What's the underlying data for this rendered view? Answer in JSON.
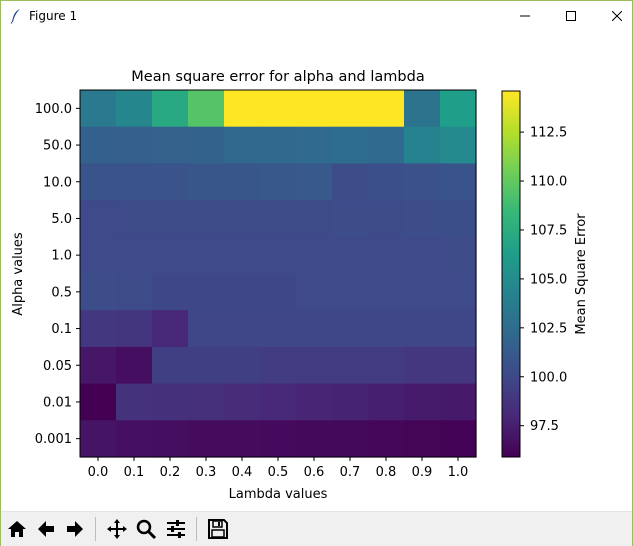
{
  "window": {
    "title": "Figure 1"
  },
  "toolbar": {
    "buttons": [
      {
        "name": "home-icon"
      },
      {
        "name": "back-arrow-icon"
      },
      {
        "name": "forward-arrow-icon"
      },
      {
        "name": "pan-icon"
      },
      {
        "name": "zoom-icon"
      },
      {
        "name": "configure-subplots-icon"
      },
      {
        "name": "save-icon"
      }
    ]
  },
  "chart_data": {
    "type": "heatmap",
    "title": "Mean square error for alpha and lambda",
    "xlabel": "Lambda values",
    "ylabel": "Alpha values",
    "colorbar_label": "Mean Square Error",
    "colormap": "viridis",
    "vmin": 95.9,
    "vmax": 114.6,
    "colorbar_ticks": [
      "97.5",
      "100.0",
      "102.5",
      "105.0",
      "107.5",
      "110.0",
      "112.5"
    ],
    "x_categories": [
      "0.0",
      "0.1",
      "0.2",
      "0.3",
      "0.4",
      "0.5",
      "0.6",
      "0.7",
      "0.8",
      "0.9",
      "1.0"
    ],
    "y_categories": [
      "100.0",
      "50.0",
      "10.0",
      "5.0",
      "1.0",
      "0.5",
      "0.1",
      "0.05",
      "0.01",
      "0.001"
    ],
    "values": [
      [
        103.5,
        104.6,
        107.2,
        109.5,
        114.6,
        114.6,
        114.6,
        114.6,
        114.6,
        103.0,
        106.3
      ],
      [
        101.6,
        101.5,
        101.7,
        101.8,
        102.1,
        102.1,
        102.3,
        102.5,
        102.3,
        104.2,
        104.8
      ],
      [
        100.8,
        100.7,
        100.7,
        100.9,
        100.9,
        101.0,
        101.1,
        100.3,
        100.5,
        100.6,
        100.8
      ],
      [
        100.1,
        100.2,
        100.2,
        100.2,
        100.2,
        100.2,
        100.2,
        100.3,
        100.2,
        100.3,
        100.4
      ],
      [
        100.1,
        100.1,
        100.1,
        100.1,
        100.1,
        100.1,
        100.1,
        100.1,
        100.1,
        100.1,
        100.2
      ],
      [
        100.3,
        100.2,
        100.0,
        100.0,
        100.0,
        100.0,
        100.1,
        100.1,
        100.1,
        100.1,
        100.1
      ],
      [
        99.0,
        98.8,
        98.0,
        99.9,
        99.9,
        99.9,
        99.9,
        99.9,
        99.9,
        99.9,
        99.9
      ],
      [
        97.0,
        96.6,
        99.4,
        99.4,
        99.4,
        99.3,
        99.2,
        99.2,
        99.2,
        98.9,
        98.9
      ],
      [
        95.9,
        98.6,
        98.5,
        98.4,
        98.2,
        98.0,
        97.8,
        97.7,
        97.5,
        97.3,
        97.2
      ],
      [
        96.9,
        96.7,
        96.6,
        96.5,
        96.5,
        96.4,
        96.3,
        96.3,
        96.2,
        96.1,
        96.0
      ]
    ]
  }
}
